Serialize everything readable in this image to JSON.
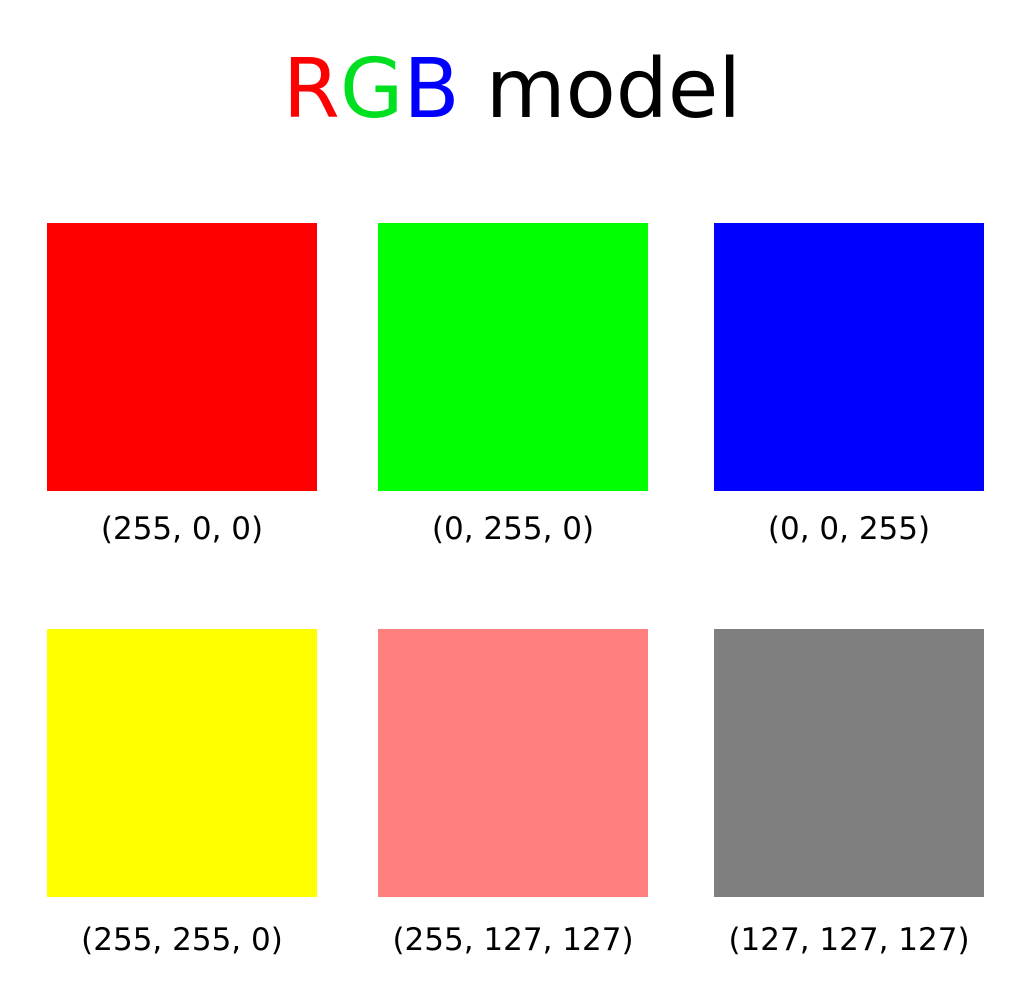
{
  "title": {
    "parts": [
      {
        "text": "R",
        "color": "#ff0000"
      },
      {
        "text": "G",
        "color": "#00e020"
      },
      {
        "text": "B",
        "color": "#0000ff"
      },
      {
        "text": " model",
        "color": "#000000"
      }
    ]
  },
  "swatches": [
    {
      "color": "#ff0000",
      "label": "(255, 0, 0)"
    },
    {
      "color": "#00ff00",
      "label": "(0, 255, 0)"
    },
    {
      "color": "#0000ff",
      "label": "(0, 0, 255)"
    },
    {
      "color": "#ffff00",
      "label": "(255, 255, 0)"
    },
    {
      "color": "#ff7f7f",
      "label": "(255, 127, 127)"
    },
    {
      "color": "#7f7f7f",
      "label": "(127, 127, 127)"
    }
  ]
}
